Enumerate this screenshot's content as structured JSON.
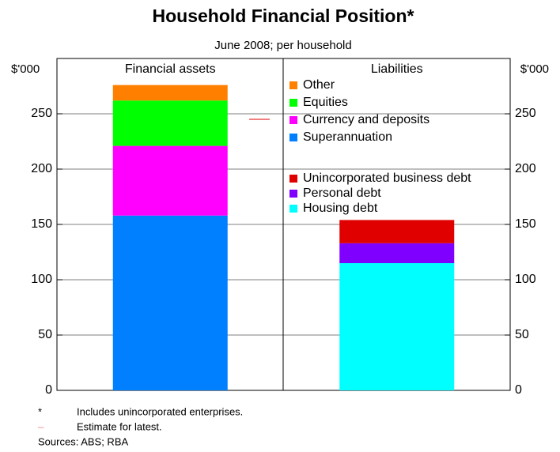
{
  "chart_data": {
    "type": "stacked_bar",
    "title": "Household Financial Position*",
    "subtitle": "June 2008; per household",
    "ylabel": "$'000",
    "categories": [
      "Financial assets",
      "Liabilities"
    ],
    "series": [
      {
        "name": "Superannuation",
        "color": "#0080ff",
        "values": [
          158,
          null
        ]
      },
      {
        "name": "Currency and deposits",
        "color": "#ff00ff",
        "values": [
          63,
          null
        ]
      },
      {
        "name": "Equities",
        "color": "#00ff00",
        "values": [
          41,
          null
        ]
      },
      {
        "name": "Other",
        "color": "#ff8000",
        "values": [
          14,
          null
        ]
      },
      {
        "name": "Housing debt",
        "color": "#00ffff",
        "values": [
          null,
          115
        ]
      },
      {
        "name": "Personal debt",
        "color": "#8000ff",
        "values": [
          null,
          18
        ]
      },
      {
        "name": "Unincorporated business debt",
        "color": "#e00000",
        "values": [
          null,
          21
        ]
      }
    ],
    "estimate_marker": {
      "value": 245,
      "color": "#f08080"
    },
    "ylim": [
      0,
      300
    ],
    "yticks": [
      0,
      50,
      100,
      150,
      200,
      250
    ],
    "notes": [
      "*",
      "Includes unincorporated enterprises.",
      "–",
      "Estimate for latest.",
      "Sources: ABS; RBA"
    ]
  }
}
